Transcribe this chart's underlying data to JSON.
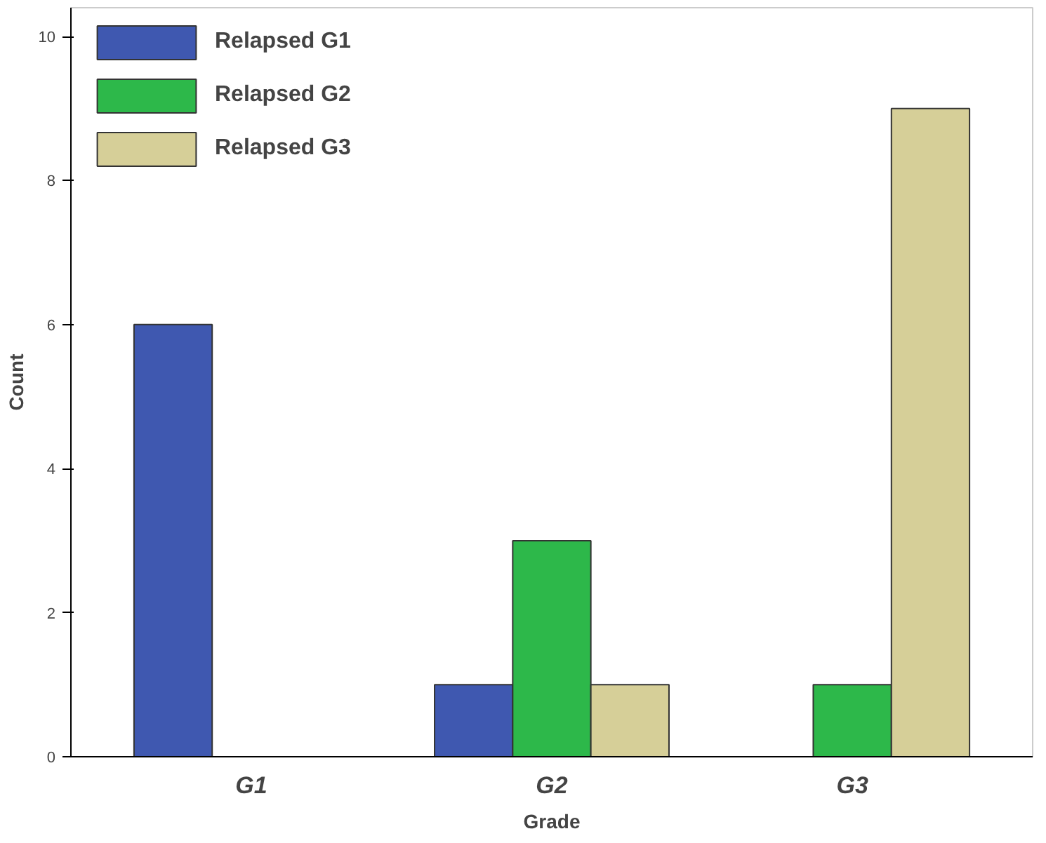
{
  "chart_data": {
    "type": "bar",
    "xlabel": "Grade",
    "ylabel": "Count",
    "categories": [
      "G1",
      "G2",
      "G3"
    ],
    "series": [
      {
        "name": "Relapsed G1",
        "color": "#3f58b0",
        "values": [
          6,
          1,
          null
        ]
      },
      {
        "name": "Relapsed G2",
        "color": "#2db84a",
        "values": [
          null,
          3,
          1
        ]
      },
      {
        "name": "Relapsed G3",
        "color": "#d6cf98",
        "values": [
          null,
          1,
          9
        ]
      }
    ],
    "ylim": [
      0,
      10.4
    ],
    "yticks": [
      0,
      2,
      4,
      6,
      8,
      10
    ],
    "grid": false,
    "legend": "top left"
  }
}
